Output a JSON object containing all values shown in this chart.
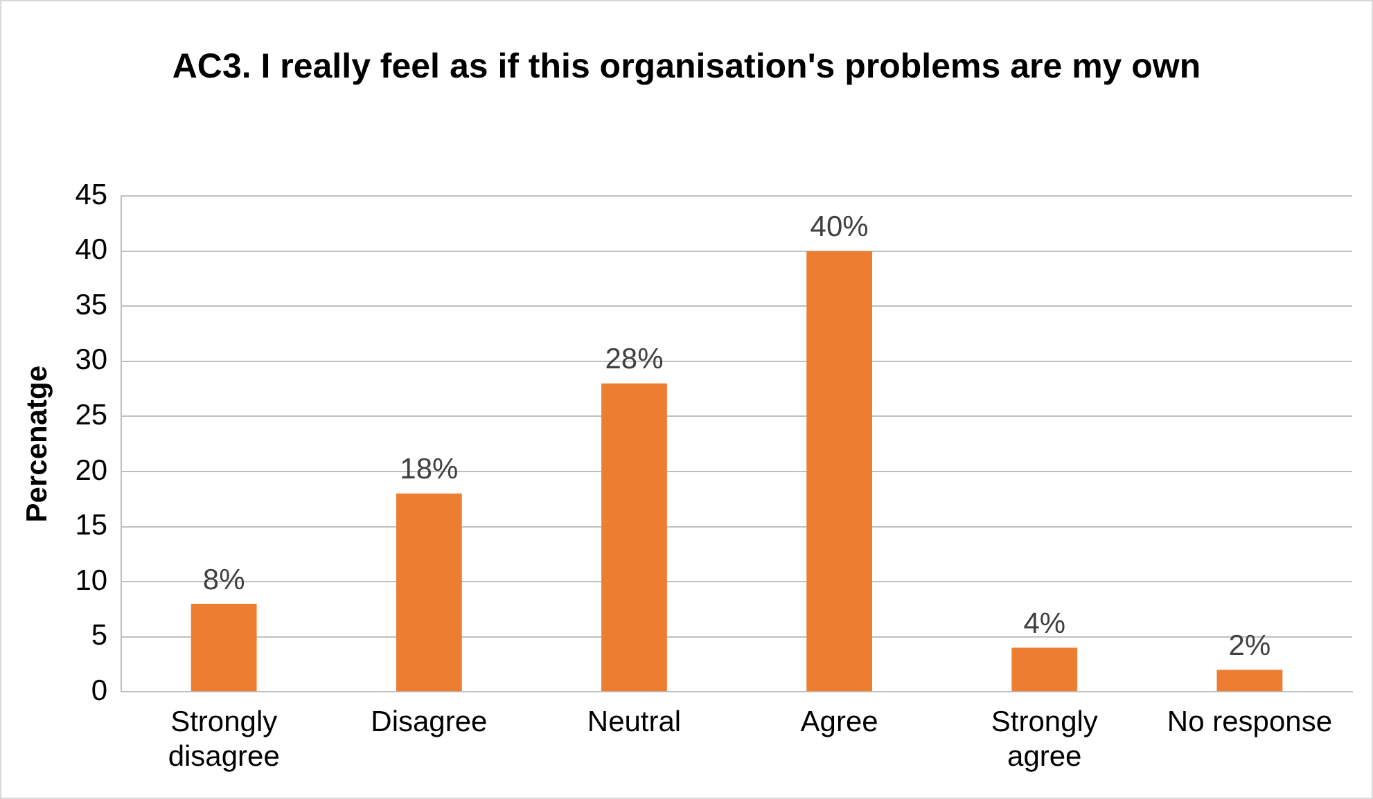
{
  "chart_data": {
    "type": "bar",
    "title": "AC3.  I really feel as if this organisation's problems are my own",
    "ylabel": "Percenatge",
    "categories": [
      "Strongly disagree",
      "Disagree",
      "Neutral",
      "Agree",
      "Strongly agree",
      "No response"
    ],
    "series": [
      {
        "color": "#ed7d31",
        "values": [
          8,
          18,
          28,
          40,
          4,
          2
        ],
        "value_labels": [
          "8%",
          "18%",
          "28%",
          "40%",
          "4%",
          "2%"
        ]
      }
    ],
    "ylim": [
      0,
      45
    ],
    "yticks": [
      0,
      5,
      10,
      15,
      20,
      25,
      30,
      35,
      40,
      45
    ],
    "grid": "y",
    "legend": false
  }
}
